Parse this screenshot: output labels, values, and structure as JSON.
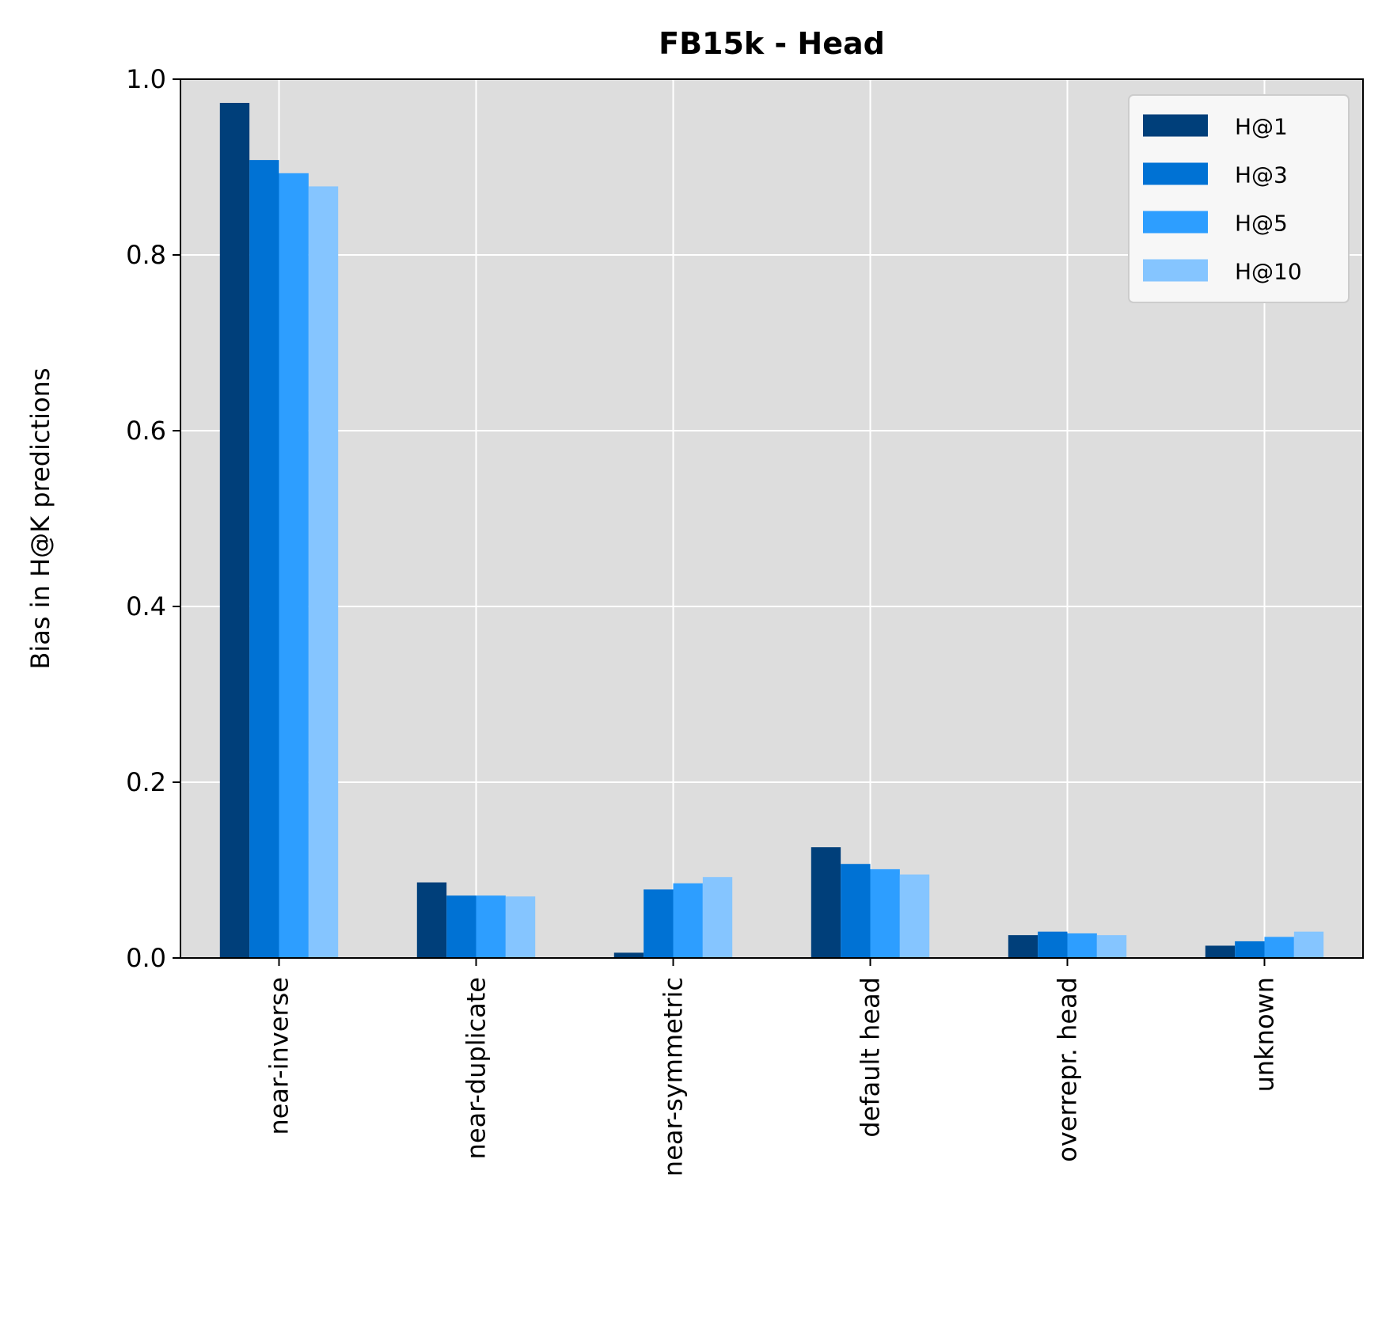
{
  "chart_data": {
    "type": "bar",
    "title": "FB15k - Head",
    "xlabel": "",
    "ylabel": "Bias in H@K predictions",
    "ylim": [
      0,
      1.0
    ],
    "yticks": [
      "0.0",
      "0.2",
      "0.4",
      "0.6",
      "0.8",
      "1.0"
    ],
    "categories": [
      "near-inverse",
      "near-duplicate",
      "near-symmetric",
      "default head",
      "overrepr. head",
      "unknown"
    ],
    "series": [
      {
        "name": "H@1",
        "color": "#003f7a",
        "values": [
          0.973,
          0.086,
          0.006,
          0.126,
          0.026,
          0.014
        ]
      },
      {
        "name": "H@3",
        "color": "#0072d4",
        "values": [
          0.908,
          0.071,
          0.078,
          0.107,
          0.03,
          0.019
        ]
      },
      {
        "name": "H@5",
        "color": "#2d9eff",
        "values": [
          0.893,
          0.071,
          0.085,
          0.101,
          0.028,
          0.024
        ]
      },
      {
        "name": "H@10",
        "color": "#85c5ff",
        "values": [
          0.878,
          0.07,
          0.092,
          0.095,
          0.026,
          0.03
        ]
      }
    ],
    "grid": true,
    "legend_position": "top-right",
    "colors": {
      "plot_background": "#dddddd",
      "grid": "#ffffff",
      "legend_background": "#f7f7f7"
    }
  }
}
